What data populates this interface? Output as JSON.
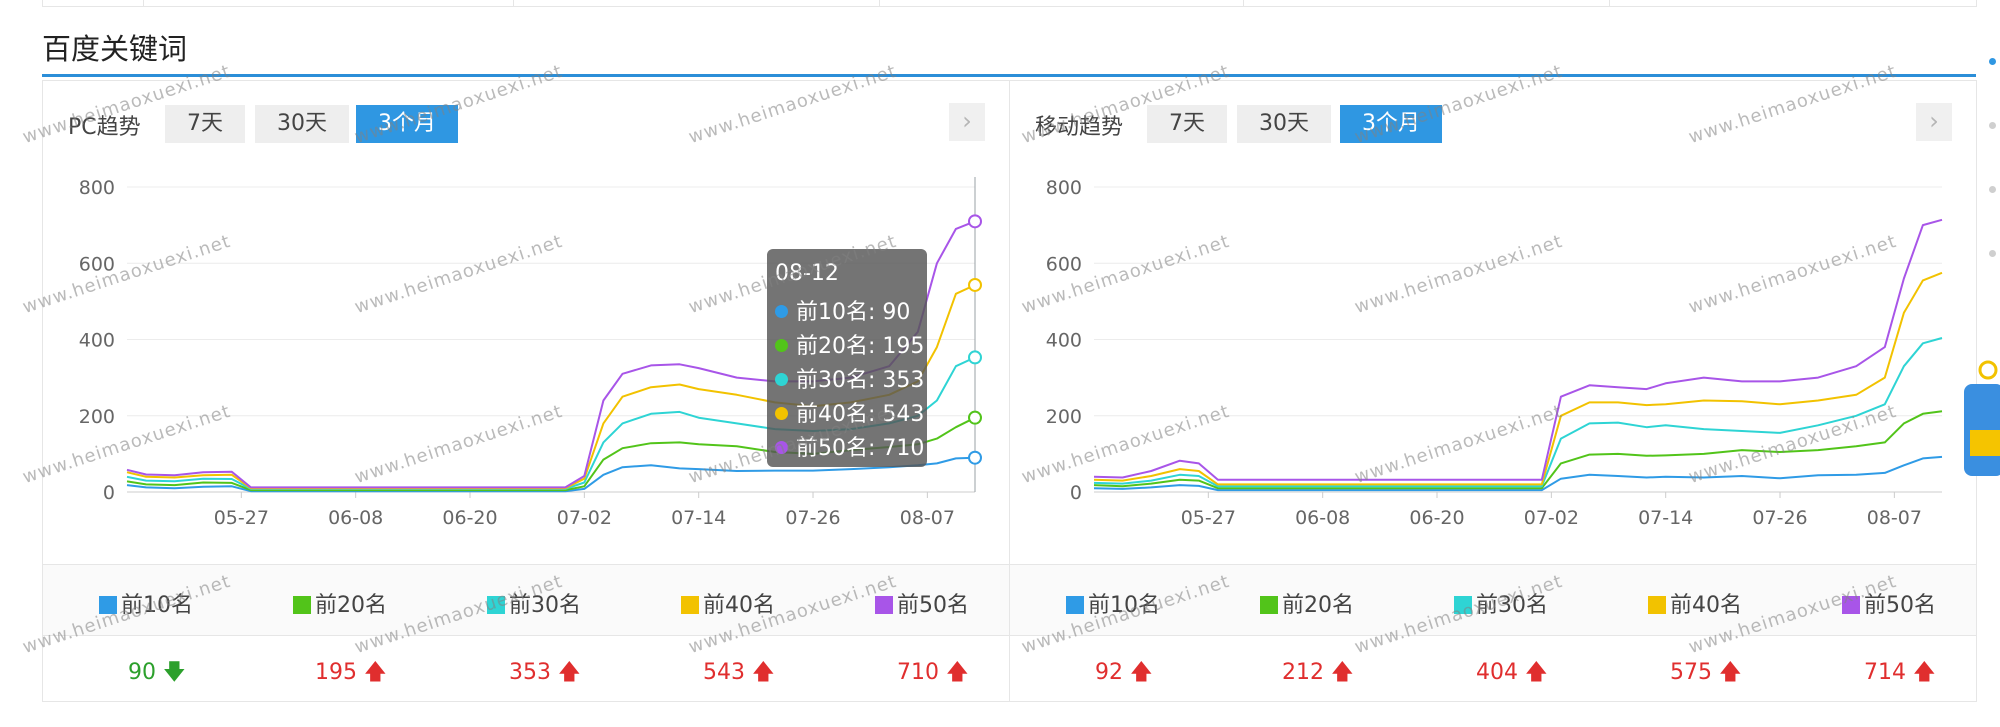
{
  "section_title": "百度关键词",
  "watermark_text": "www.heimaoxuexi.net",
  "colors": {
    "accent": "#2f97e2",
    "top10": "#2f9be6",
    "top20": "#52c41a",
    "top30": "#2ed4d4",
    "top40": "#f2c200",
    "top50": "#a855e8",
    "up": "#e02e2e",
    "down": "#2ca02c"
  },
  "panels": [
    {
      "label": "PC趋势",
      "tabs": [
        "7天",
        "30天",
        "3个月"
      ],
      "active_tab": "3个月",
      "legend": [
        "前10名",
        "前20名",
        "前30名",
        "前40名",
        "前50名"
      ],
      "values": [
        {
          "text": "90",
          "trend": "down"
        },
        {
          "text": "195",
          "trend": "up"
        },
        {
          "text": "353",
          "trend": "up"
        },
        {
          "text": "543",
          "trend": "up"
        },
        {
          "text": "710",
          "trend": "up"
        }
      ],
      "tooltip": {
        "date": "08-12",
        "rows": [
          "前10名: 90",
          "前20名: 195",
          "前30名: 353",
          "前40名: 543",
          "前50名: 710"
        ]
      }
    },
    {
      "label": "移动趋势",
      "tabs": [
        "7天",
        "30天",
        "3个月"
      ],
      "active_tab": "3个月",
      "legend": [
        "前10名",
        "前20名",
        "前30名",
        "前40名",
        "前50名"
      ],
      "values": [
        {
          "text": "92",
          "trend": "up"
        },
        {
          "text": "212",
          "trend": "up"
        },
        {
          "text": "404",
          "trend": "up"
        },
        {
          "text": "575",
          "trend": "up"
        },
        {
          "text": "714",
          "trend": "up"
        }
      ]
    }
  ],
  "chart_data": [
    {
      "type": "line",
      "title": "PC趋势",
      "y_ticks": [
        0,
        200,
        400,
        600,
        800
      ],
      "ylim": [
        0,
        800
      ],
      "x_tick_labels": [
        "05-27",
        "06-08",
        "06-20",
        "07-02",
        "07-14",
        "07-26",
        "08-07"
      ],
      "x_range": [
        "05-15",
        "08-12"
      ],
      "grid": true,
      "legend_position": "bottom",
      "series": [
        {
          "name": "前10名",
          "points": [
            [
              "05-15",
              18
            ],
            [
              "05-17",
              12
            ],
            [
              "05-20",
              10
            ],
            [
              "05-23",
              14
            ],
            [
              "05-26",
              15
            ],
            [
              "05-28",
              2
            ],
            [
              "06-30",
              2
            ],
            [
              "07-02",
              8
            ],
            [
              "07-04",
              45
            ],
            [
              "07-06",
              65
            ],
            [
              "07-09",
              70
            ],
            [
              "07-12",
              62
            ],
            [
              "07-14",
              60
            ],
            [
              "07-18",
              55
            ],
            [
              "07-22",
              56
            ],
            [
              "07-26",
              56
            ],
            [
              "07-30",
              60
            ],
            [
              "08-03",
              65
            ],
            [
              "08-06",
              70
            ],
            [
              "08-08",
              75
            ],
            [
              "08-10",
              88
            ],
            [
              "08-12",
              90
            ]
          ]
        },
        {
          "name": "前20名",
          "points": [
            [
              "05-15",
              28
            ],
            [
              "05-17",
              20
            ],
            [
              "05-20",
              18
            ],
            [
              "05-23",
              25
            ],
            [
              "05-26",
              24
            ],
            [
              "05-28",
              5
            ],
            [
              "06-30",
              5
            ],
            [
              "07-02",
              15
            ],
            [
              "07-04",
              85
            ],
            [
              "07-06",
              115
            ],
            [
              "07-09",
              128
            ],
            [
              "07-12",
              130
            ],
            [
              "07-14",
              125
            ],
            [
              "07-18",
              120
            ],
            [
              "07-22",
              105
            ],
            [
              "07-26",
              100
            ],
            [
              "07-30",
              110
            ],
            [
              "08-03",
              118
            ],
            [
              "08-06",
              125
            ],
            [
              "08-08",
              140
            ],
            [
              "08-10",
              170
            ],
            [
              "08-12",
              195
            ]
          ]
        },
        {
          "name": "前30名",
          "points": [
            [
              "05-15",
              40
            ],
            [
              "05-17",
              30
            ],
            [
              "05-20",
              28
            ],
            [
              "05-23",
              35
            ],
            [
              "05-26",
              34
            ],
            [
              "05-28",
              8
            ],
            [
              "06-30",
              8
            ],
            [
              "07-02",
              25
            ],
            [
              "07-04",
              130
            ],
            [
              "07-06",
              180
            ],
            [
              "07-09",
              205
            ],
            [
              "07-12",
              210
            ],
            [
              "07-14",
              195
            ],
            [
              "07-18",
              180
            ],
            [
              "07-22",
              165
            ],
            [
              "07-26",
              160
            ],
            [
              "07-30",
              165
            ],
            [
              "08-03",
              180
            ],
            [
              "08-06",
              200
            ],
            [
              "08-08",
              240
            ],
            [
              "08-10",
              330
            ],
            [
              "08-12",
              353
            ]
          ]
        },
        {
          "name": "前40名",
          "points": [
            [
              "05-15",
              52
            ],
            [
              "05-17",
              40
            ],
            [
              "05-20",
              38
            ],
            [
              "05-23",
              44
            ],
            [
              "05-26",
              45
            ],
            [
              "05-28",
              10
            ],
            [
              "06-30",
              10
            ],
            [
              "07-02",
              35
            ],
            [
              "07-04",
              180
            ],
            [
              "07-06",
              250
            ],
            [
              "07-09",
              275
            ],
            [
              "07-12",
              282
            ],
            [
              "07-14",
              270
            ],
            [
              "07-18",
              255
            ],
            [
              "07-22",
              235
            ],
            [
              "07-26",
              225
            ],
            [
              "07-30",
              235
            ],
            [
              "08-03",
              255
            ],
            [
              "08-06",
              290
            ],
            [
              "08-08",
              380
            ],
            [
              "08-10",
              520
            ],
            [
              "08-12",
              543
            ]
          ]
        },
        {
          "name": "前50名",
          "points": [
            [
              "05-15",
              58
            ],
            [
              "05-17",
              46
            ],
            [
              "05-20",
              44
            ],
            [
              "05-23",
              52
            ],
            [
              "05-26",
              53
            ],
            [
              "05-28",
              12
            ],
            [
              "06-30",
              12
            ],
            [
              "07-02",
              42
            ],
            [
              "07-04",
              240
            ],
            [
              "07-06",
              310
            ],
            [
              "07-09",
              332
            ],
            [
              "07-12",
              335
            ],
            [
              "07-14",
              325
            ],
            [
              "07-18",
              300
            ],
            [
              "07-22",
              290
            ],
            [
              "07-26",
              290
            ],
            [
              "07-30",
              300
            ],
            [
              "08-03",
              330
            ],
            [
              "08-06",
              420
            ],
            [
              "08-08",
              600
            ],
            [
              "08-10",
              690
            ],
            [
              "08-12",
              710
            ]
          ]
        }
      ]
    },
    {
      "type": "line",
      "title": "移动趋势",
      "y_ticks": [
        0,
        200,
        400,
        600,
        800
      ],
      "ylim": [
        0,
        800
      ],
      "x_tick_labels": [
        "05-27",
        "06-08",
        "06-20",
        "07-02",
        "07-14",
        "07-26",
        "08-07"
      ],
      "x_range": [
        "05-15",
        "08-12"
      ],
      "grid": true,
      "legend_position": "bottom",
      "series": [
        {
          "name": "前10名",
          "points": [
            [
              "05-15",
              10
            ],
            [
              "05-18",
              8
            ],
            [
              "05-21",
              12
            ],
            [
              "05-24",
              18
            ],
            [
              "05-26",
              16
            ],
            [
              "05-28",
              5
            ],
            [
              "07-01",
              5
            ],
            [
              "07-03",
              35
            ],
            [
              "07-06",
              45
            ],
            [
              "07-09",
              42
            ],
            [
              "07-12",
              38
            ],
            [
              "07-14",
              40
            ],
            [
              "07-18",
              38
            ],
            [
              "07-22",
              42
            ],
            [
              "07-26",
              36
            ],
            [
              "07-30",
              44
            ],
            [
              "08-03",
              45
            ],
            [
              "08-06",
              50
            ],
            [
              "08-08",
              70
            ],
            [
              "08-10",
              88
            ],
            [
              "08-12",
              92
            ]
          ]
        },
        {
          "name": "前20名",
          "points": [
            [
              "05-15",
              18
            ],
            [
              "05-18",
              15
            ],
            [
              "05-21",
              22
            ],
            [
              "05-24",
              32
            ],
            [
              "05-26",
              30
            ],
            [
              "05-28",
              10
            ],
            [
              "07-01",
              10
            ],
            [
              "07-03",
              75
            ],
            [
              "07-06",
              98
            ],
            [
              "07-09",
              100
            ],
            [
              "07-12",
              95
            ],
            [
              "07-14",
              96
            ],
            [
              "07-18",
              100
            ],
            [
              "07-22",
              110
            ],
            [
              "07-26",
              105
            ],
            [
              "07-30",
              110
            ],
            [
              "08-03",
              120
            ],
            [
              "08-06",
              130
            ],
            [
              "08-08",
              180
            ],
            [
              "08-10",
              205
            ],
            [
              "08-12",
              212
            ]
          ]
        },
        {
          "name": "前30名",
          "points": [
            [
              "05-15",
              24
            ],
            [
              "05-18",
              22
            ],
            [
              "05-21",
              30
            ],
            [
              "05-24",
              45
            ],
            [
              "05-26",
              42
            ],
            [
              "05-28",
              15
            ],
            [
              "07-01",
              15
            ],
            [
              "07-03",
              140
            ],
            [
              "07-06",
              180
            ],
            [
              "07-09",
              182
            ],
            [
              "07-12",
              170
            ],
            [
              "07-14",
              175
            ],
            [
              "07-18",
              165
            ],
            [
              "07-22",
              160
            ],
            [
              "07-26",
              155
            ],
            [
              "07-30",
              175
            ],
            [
              "08-03",
              200
            ],
            [
              "08-06",
              230
            ],
            [
              "08-08",
              330
            ],
            [
              "08-10",
              390
            ],
            [
              "08-12",
              404
            ]
          ]
        },
        {
          "name": "前40名",
          "points": [
            [
              "05-15",
              32
            ],
            [
              "05-18",
              30
            ],
            [
              "05-21",
              42
            ],
            [
              "05-24",
              60
            ],
            [
              "05-26",
              55
            ],
            [
              "05-28",
              20
            ],
            [
              "07-01",
              20
            ],
            [
              "07-03",
              200
            ],
            [
              "07-06",
              235
            ],
            [
              "07-09",
              235
            ],
            [
              "07-12",
              228
            ],
            [
              "07-14",
              230
            ],
            [
              "07-18",
              240
            ],
            [
              "07-22",
              238
            ],
            [
              "07-26",
              230
            ],
            [
              "07-30",
              240
            ],
            [
              "08-03",
              255
            ],
            [
              "08-06",
              300
            ],
            [
              "08-08",
              470
            ],
            [
              "08-10",
              555
            ],
            [
              "08-12",
              575
            ]
          ]
        },
        {
          "name": "前50名",
          "points": [
            [
              "05-15",
              40
            ],
            [
              "05-18",
              38
            ],
            [
              "05-21",
              55
            ],
            [
              "05-24",
              82
            ],
            [
              "05-26",
              75
            ],
            [
              "05-28",
              32
            ],
            [
              "07-01",
              32
            ],
            [
              "07-03",
              250
            ],
            [
              "07-06",
              280
            ],
            [
              "07-09",
              275
            ],
            [
              "07-12",
              270
            ],
            [
              "07-14",
              285
            ],
            [
              "07-18",
              300
            ],
            [
              "07-22",
              290
            ],
            [
              "07-26",
              290
            ],
            [
              "07-30",
              300
            ],
            [
              "08-03",
              330
            ],
            [
              "08-06",
              380
            ],
            [
              "08-08",
              560
            ],
            [
              "08-10",
              700
            ],
            [
              "08-12",
              714
            ]
          ]
        }
      ]
    }
  ]
}
